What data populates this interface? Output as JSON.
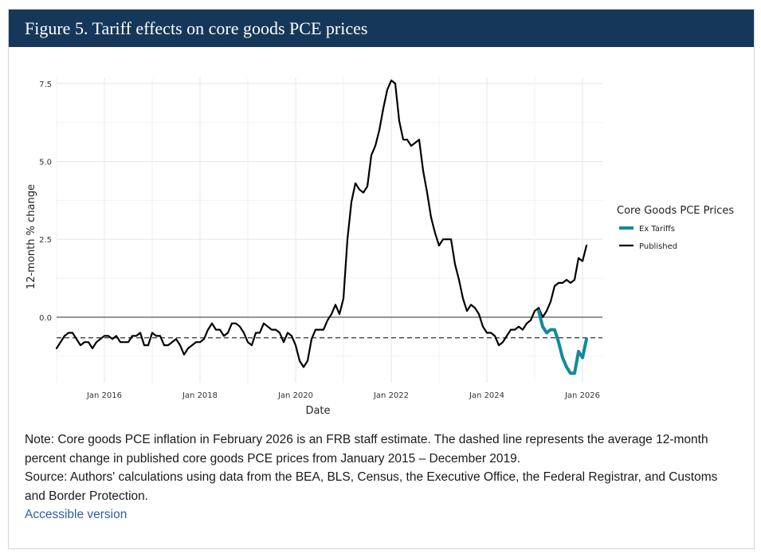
{
  "figure_title": "Figure 5. Tariff effects on core goods PCE prices",
  "note": "Note: Core goods PCE inflation in February 2026 is an FRB staff estimate. The dashed line represents the average 12-month percent change in published core goods PCE prices from January 2015 – December 2019.",
  "source": "Source: Authors' calculations using data from the BEA, BLS, Census, the Executive Office, the Federal Registrar, and Customs and Border Protection.",
  "accessible_link": "Accessible version",
  "chart_data": {
    "type": "line",
    "xlabel": "Date",
    "ylabel": "12-month % change",
    "x_ticks": [
      "Jan 2016",
      "Jan 2018",
      "Jan 2020",
      "Jan 2022",
      "Jan 2024",
      "Jan 2026"
    ],
    "y_ticks": [
      "0.0",
      "2.5",
      "5.0",
      "7.5"
    ],
    "xlim": [
      "2015-01",
      "2026-06"
    ],
    "ylim": [
      -2.1,
      7.7
    ],
    "grid": true,
    "legend_title": "Core Goods PCE Prices",
    "legend_position": "right",
    "reference_lines": [
      {
        "kind": "solid",
        "y": 0.0
      },
      {
        "kind": "dashed",
        "y": -0.66
      }
    ],
    "series": [
      {
        "name": "Ex Tariffs",
        "color": "#138a9b",
        "x": [
          "2025-02",
          "2025-03",
          "2025-04",
          "2025-05",
          "2025-06",
          "2025-07",
          "2025-08",
          "2025-09",
          "2025-10",
          "2025-11",
          "2025-12",
          "2026-01",
          "2026-02"
        ],
        "y": [
          0.2,
          -0.3,
          -0.5,
          -0.4,
          -0.4,
          -0.8,
          -1.3,
          -1.6,
          -1.8,
          -1.8,
          -1.1,
          -1.3,
          -0.7
        ]
      },
      {
        "name": "Published",
        "color": "#000000",
        "x": [
          "2015-01",
          "2015-02",
          "2015-03",
          "2015-04",
          "2015-05",
          "2015-06",
          "2015-07",
          "2015-08",
          "2015-09",
          "2015-10",
          "2015-11",
          "2015-12",
          "2016-01",
          "2016-02",
          "2016-03",
          "2016-04",
          "2016-05",
          "2016-06",
          "2016-07",
          "2016-08",
          "2016-09",
          "2016-10",
          "2016-11",
          "2016-12",
          "2017-01",
          "2017-02",
          "2017-03",
          "2017-04",
          "2017-05",
          "2017-06",
          "2017-07",
          "2017-08",
          "2017-09",
          "2017-10",
          "2017-11",
          "2017-12",
          "2018-01",
          "2018-02",
          "2018-03",
          "2018-04",
          "2018-05",
          "2018-06",
          "2018-07",
          "2018-08",
          "2018-09",
          "2018-10",
          "2018-11",
          "2018-12",
          "2019-01",
          "2019-02",
          "2019-03",
          "2019-04",
          "2019-05",
          "2019-06",
          "2019-07",
          "2019-08",
          "2019-09",
          "2019-10",
          "2019-11",
          "2019-12",
          "2020-01",
          "2020-02",
          "2020-03",
          "2020-04",
          "2020-05",
          "2020-06",
          "2020-07",
          "2020-08",
          "2020-09",
          "2020-10",
          "2020-11",
          "2020-12",
          "2021-01",
          "2021-02",
          "2021-03",
          "2021-04",
          "2021-05",
          "2021-06",
          "2021-07",
          "2021-08",
          "2021-09",
          "2021-10",
          "2021-11",
          "2021-12",
          "2022-01",
          "2022-02",
          "2022-03",
          "2022-04",
          "2022-05",
          "2022-06",
          "2022-07",
          "2022-08",
          "2022-09",
          "2022-10",
          "2022-11",
          "2022-12",
          "2023-01",
          "2023-02",
          "2023-03",
          "2023-04",
          "2023-05",
          "2023-06",
          "2023-07",
          "2023-08",
          "2023-09",
          "2023-10",
          "2023-11",
          "2023-12",
          "2024-01",
          "2024-02",
          "2024-03",
          "2024-04",
          "2024-05",
          "2024-06",
          "2024-07",
          "2024-08",
          "2024-09",
          "2024-10",
          "2024-11",
          "2024-12",
          "2025-01",
          "2025-02",
          "2025-03",
          "2025-04",
          "2025-05",
          "2025-06",
          "2025-07",
          "2025-08",
          "2025-09",
          "2025-10",
          "2025-11",
          "2025-12",
          "2026-01",
          "2026-02"
        ],
        "y": [
          -1.0,
          -0.8,
          -0.6,
          -0.5,
          -0.5,
          -0.7,
          -0.9,
          -0.8,
          -0.8,
          -1.0,
          -0.8,
          -0.7,
          -0.6,
          -0.6,
          -0.7,
          -0.6,
          -0.8,
          -0.8,
          -0.8,
          -0.6,
          -0.6,
          -0.5,
          -0.9,
          -0.9,
          -0.5,
          -0.6,
          -0.6,
          -0.9,
          -0.9,
          -0.8,
          -0.7,
          -0.9,
          -1.2,
          -1.0,
          -0.9,
          -0.8,
          -0.8,
          -0.7,
          -0.4,
          -0.2,
          -0.4,
          -0.4,
          -0.6,
          -0.5,
          -0.2,
          -0.2,
          -0.3,
          -0.5,
          -0.8,
          -0.9,
          -0.5,
          -0.5,
          -0.2,
          -0.3,
          -0.4,
          -0.4,
          -0.5,
          -0.8,
          -0.5,
          -0.6,
          -0.9,
          -1.4,
          -1.6,
          -1.4,
          -0.7,
          -0.4,
          -0.4,
          -0.4,
          -0.1,
          0.1,
          0.4,
          0.1,
          0.6,
          2.5,
          3.7,
          4.3,
          4.1,
          4.0,
          4.2,
          5.2,
          5.5,
          6.0,
          6.7,
          7.3,
          7.6,
          7.5,
          6.3,
          5.7,
          5.7,
          5.5,
          5.6,
          5.7,
          4.7,
          4.0,
          3.2,
          2.7,
          2.3,
          2.5,
          2.5,
          2.5,
          1.7,
          1.2,
          0.6,
          0.2,
          0.4,
          0.3,
          0.1,
          -0.3,
          -0.5,
          -0.5,
          -0.6,
          -0.9,
          -0.8,
          -0.6,
          -0.4,
          -0.4,
          -0.3,
          -0.4,
          -0.2,
          -0.1,
          0.2,
          0.3,
          0.0,
          0.2,
          0.5,
          1.0,
          1.1,
          1.1,
          1.2,
          1.1,
          1.2,
          1.9,
          1.8,
          2.3
        ]
      }
    ]
  }
}
